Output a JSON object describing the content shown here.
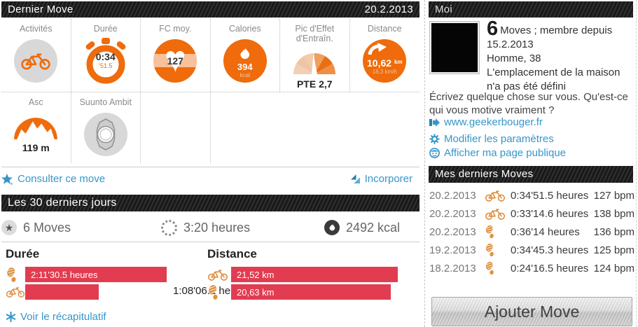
{
  "colors": {
    "orange": "#ef6b0c",
    "orange_light": "#f6c19a",
    "blue": "#3596cb",
    "red_bar": "#e23c51",
    "header_bg": "#1d1d1d",
    "gray_circle": "#d8d8d8"
  },
  "last_move": {
    "title": "Dernier Move",
    "date": "20.2.2013",
    "tiles": [
      {
        "label": "Activités",
        "icon": "cycling-icon"
      },
      {
        "label": "Durée",
        "value": "0:34",
        "sub": "'51.5",
        "icon": "stopwatch-icon"
      },
      {
        "label": "FC moy.",
        "value": "127",
        "icon": "heart-icon"
      },
      {
        "label": "Calories",
        "value": "394",
        "unit": "kcal",
        "icon": "flame-icon"
      },
      {
        "label": "Pic d'Effet d'Entraîn.",
        "value": "PTE 2,7",
        "icon": "gauge-icon"
      },
      {
        "label": "Distance",
        "value": "10,62",
        "unit": "km",
        "sub": "18,3 km/h",
        "icon": "distance-arrow-icon"
      },
      {
        "label": "Asc",
        "value": "119 m",
        "icon": "mountain-icon"
      },
      {
        "label": "Suunto Ambit",
        "icon": "watch-icon"
      }
    ],
    "links": {
      "view_move": "Consulter ce move",
      "embed": "Incorporer"
    }
  },
  "last_30_days": {
    "title": "Les 30 derniers jours",
    "stats": [
      {
        "icon": "star-icon",
        "label": "6 Moves"
      },
      {
        "icon": "spinner-icon",
        "label": "3:20 heures"
      },
      {
        "icon": "flame-icon",
        "label": "2492 kcal"
      }
    ],
    "summary_link": "Voir le récapitulatif"
  },
  "chart_data": [
    {
      "type": "bar",
      "title": "Durée",
      "orientation": "horizontal",
      "unit": "hours",
      "rows": [
        {
          "activity": "running",
          "label": "2:11'30.5 heures",
          "value": 2.1918,
          "label_position": "inside"
        },
        {
          "activity": "cycling",
          "label": "1:08'06.1 heures",
          "value": 1.135,
          "label_position": "outside"
        }
      ]
    },
    {
      "type": "bar",
      "title": "Distance",
      "orientation": "horizontal",
      "unit": "km",
      "rows": [
        {
          "activity": "cycling",
          "label": "21,52 km",
          "value": 21.52,
          "label_position": "inside"
        },
        {
          "activity": "running",
          "label": "20,63 km",
          "value": 20.63,
          "label_position": "inside"
        }
      ]
    }
  ],
  "profile": {
    "title": "Moi",
    "moves_count": "6",
    "member_text": "Moves ; membre depuis 15.2.2013",
    "gender_age": "Homme, 38",
    "location": "L'emplacement de la maison n'a pas été défini",
    "about_prompt": "Écrivez quelque chose sur vous. Qu'est-ce qui vous motive vraiment ?",
    "website": "www.geekerbouger.fr",
    "links": [
      {
        "icon": "gear-icon",
        "label": "Modifier les paramètres"
      },
      {
        "icon": "face-icon",
        "label": "Afficher ma page publique"
      }
    ]
  },
  "recent_moves": {
    "title": "Mes derniers Moves",
    "rows": [
      {
        "date": "20.2.2013",
        "activity": "cycling",
        "duration": "0:34'51.5 heures",
        "hr": "127 bpm"
      },
      {
        "date": "20.2.2013",
        "activity": "cycling",
        "duration": "0:33'14.6 heures",
        "hr": "138 bpm"
      },
      {
        "date": "20.2.2013",
        "activity": "running",
        "duration": "0:36'14 heures",
        "hr": "136 bpm"
      },
      {
        "date": "19.2.2013",
        "activity": "running",
        "duration": "0:34'45.3 heures",
        "hr": "125 bpm"
      },
      {
        "date": "18.2.2013",
        "activity": "running",
        "duration": "0:24'16.5 heures",
        "hr": "124 bpm"
      }
    ]
  },
  "add_move_button": "Ajouter Move"
}
